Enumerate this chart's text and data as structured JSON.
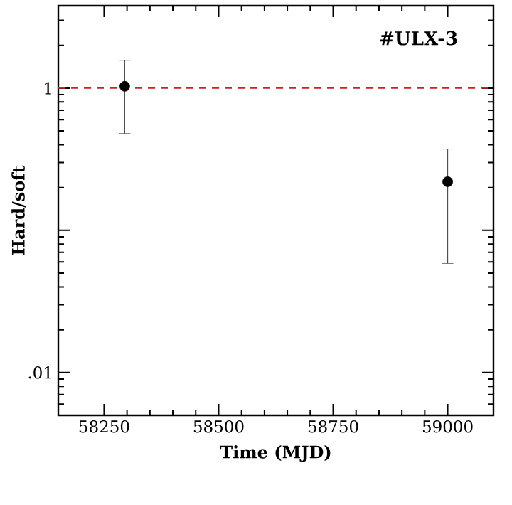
{
  "chart_data": {
    "type": "scatter",
    "xlabel": "Time (MJD)",
    "ylabel": "Hard/soft",
    "annotations": [
      "#ULX-3"
    ],
    "x": [
      58295,
      59000
    ],
    "series": [
      {
        "color": "#000000",
        "values": [
          1.03,
          0.22
        ],
        "errors": [
          [
            0.48,
            1.57
          ],
          [
            0.0585,
            0.373
          ]
        ]
      }
    ],
    "marker": "circle",
    "log": "y",
    "xlim": [
      58150,
      59100
    ],
    "xticks": [
      58250,
      58500,
      58750,
      59000
    ],
    "ylim": [
      0.005,
      3.8
    ],
    "yticks": [
      {
        "value": 1,
        "label": "1"
      },
      {
        "value": 0.1,
        "label": null
      },
      {
        "value": 0.01,
        "label": ".01"
      }
    ],
    "ref_lines": [
      {
        "axis": "y",
        "value": 1,
        "color": "#cc2222",
        "line_style": "dashed"
      }
    ]
  }
}
